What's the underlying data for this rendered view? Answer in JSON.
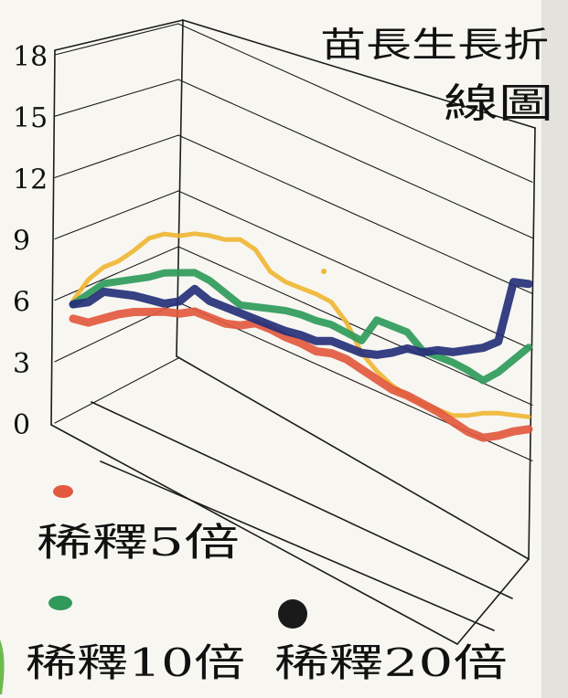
{
  "chart_data": {
    "type": "line",
    "title_line1": "苗長生長折",
    "title_line2": "線圖",
    "xlabel": "",
    "ylabel": "",
    "y_ticks": [
      "18",
      "15",
      "12",
      "9",
      "6",
      "3",
      "0"
    ],
    "ylim": [
      0,
      18
    ],
    "n_points": 31,
    "grid": true,
    "legend_position": "bottom-left",
    "series": [
      {
        "name": "稀釋5倍",
        "color": "#e2593f",
        "values": [
          5.1,
          5.0,
          5.3,
          5.6,
          5.8,
          5.9,
          6.0,
          6.0,
          6.2,
          6.0,
          5.8,
          5.8,
          6.0,
          5.8,
          5.5,
          5.3,
          5.0,
          5.0,
          4.8,
          4.4,
          4.0,
          3.6,
          3.4,
          3.1,
          2.8,
          2.4,
          2.0,
          1.8,
          2.0,
          2.3,
          2.5
        ]
      },
      {
        "name": "稀釋10倍",
        "color": "#2f9a5a",
        "values": [
          5.8,
          6.4,
          7.0,
          7.2,
          7.4,
          7.6,
          7.9,
          8.0,
          8.1,
          7.8,
          7.3,
          6.8,
          6.8,
          6.8,
          6.8,
          6.7,
          6.5,
          6.4,
          6.1,
          5.8,
          6.9,
          6.7,
          6.5,
          5.7,
          5.5,
          5.3,
          5.0,
          4.6,
          5.1,
          5.8,
          6.5
        ]
      },
      {
        "name": "稀釋20倍",
        "color": "#25307a",
        "values": [
          5.8,
          6.0,
          6.6,
          6.6,
          6.6,
          6.5,
          6.4,
          6.6,
          7.3,
          6.8,
          6.6,
          6.4,
          6.2,
          6.0,
          5.8,
          5.7,
          5.5,
          5.6,
          5.4,
          5.2,
          5.2,
          5.4,
          5.7,
          5.6,
          5.8,
          5.8,
          6.0,
          6.2,
          6.6,
          9.6,
          9.6
        ]
      },
      {
        "name": "",
        "color": "#efb634",
        "values": [
          6.0,
          7.1,
          7.8,
          8.2,
          8.8,
          9.5,
          9.8,
          9.8,
          10.0,
          10.0,
          9.9,
          10.0,
          9.6,
          8.6,
          8.2,
          8.0,
          7.8,
          7.5,
          6.6,
          5.2,
          4.4,
          3.8,
          3.4,
          3.1,
          2.9,
          2.7,
          2.8,
          3.0,
          3.1,
          3.1,
          3.1
        ]
      }
    ]
  }
}
